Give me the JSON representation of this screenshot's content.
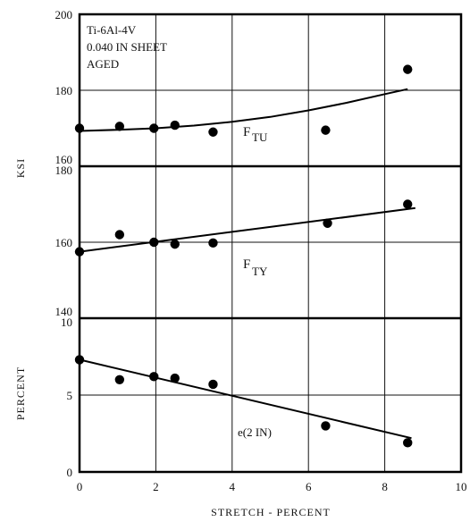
{
  "chart_data": {
    "type": "scatter",
    "x_axis": {
      "label": "STRETCH - PERCENT",
      "range": [
        0,
        10
      ],
      "ticks": [
        "0",
        "2",
        "4",
        "6",
        "8",
        "10"
      ]
    },
    "annotation": [
      "Ti-6Al-4V",
      "0.040 IN SHEET",
      "AGED"
    ],
    "left_labels": {
      "ksi": "KSI",
      "percent": "PERCENT"
    },
    "panels": [
      {
        "id": "ftu",
        "y_range": [
          160,
          200
        ],
        "y_ticks": [
          160,
          180,
          200
        ],
        "tick_labels": [
          "160",
          "180",
          "200"
        ],
        "param_main": "F",
        "param_sub": "TU",
        "points": [
          [
            0,
            170
          ],
          [
            1.05,
            170.5
          ],
          [
            1.95,
            170
          ],
          [
            2.5,
            170.8
          ],
          [
            3.5,
            169
          ],
          [
            6.45,
            169.5
          ],
          [
            8.6,
            185.5
          ]
        ],
        "curve": [
          [
            0,
            169.3
          ],
          [
            1,
            169.6
          ],
          [
            2,
            170.0
          ],
          [
            3,
            170.7
          ],
          [
            4,
            171.7
          ],
          [
            5,
            173.0
          ],
          [
            6,
            174.7
          ],
          [
            7,
            176.7
          ],
          [
            8,
            179.0
          ],
          [
            8.6,
            180.3
          ]
        ]
      },
      {
        "id": "fty",
        "y_range": [
          140,
          180
        ],
        "y_ticks": [
          140,
          160,
          180
        ],
        "tick_labels": [
          "140",
          "160",
          "180"
        ],
        "param_main": "F",
        "param_sub": "TY",
        "points": [
          [
            0,
            157.5
          ],
          [
            1.05,
            162
          ],
          [
            1.95,
            160
          ],
          [
            2.5,
            159.5
          ],
          [
            3.5,
            159.8
          ],
          [
            6.5,
            165
          ],
          [
            8.6,
            170
          ]
        ],
        "line": [
          [
            0,
            157.5
          ],
          [
            8.8,
            169
          ]
        ]
      },
      {
        "id": "elong",
        "y_range": [
          0,
          10
        ],
        "y_ticks": [
          0,
          5,
          10
        ],
        "tick_labels": [
          "0",
          "5",
          "10"
        ],
        "param_main": "e(2 IN)",
        "param_sub": "",
        "points": [
          [
            0,
            7.3
          ],
          [
            1.05,
            6
          ],
          [
            1.95,
            6.2
          ],
          [
            2.5,
            6.1
          ],
          [
            3.5,
            5.7
          ],
          [
            6.45,
            3
          ],
          [
            8.6,
            1.9
          ]
        ],
        "line": [
          [
            0,
            7.3
          ],
          [
            8.7,
            2.2
          ]
        ]
      }
    ],
    "grid": true
  }
}
